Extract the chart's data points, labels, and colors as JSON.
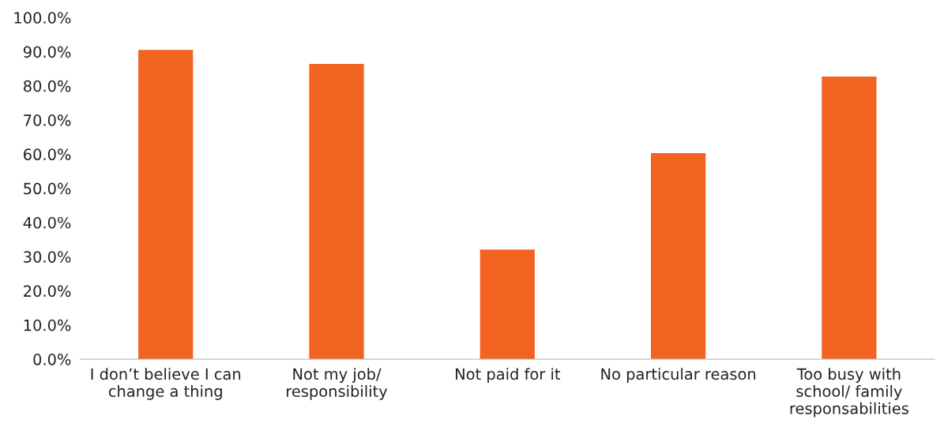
{
  "chart_data": {
    "type": "bar",
    "categories": [
      "I don’t believe I can\nchange a thing",
      "Not my job/\nresponsibility",
      "Not paid for it",
      "No particular reason",
      "Too busy with\nschool/ family\nresponsabilities"
    ],
    "values": [
      90.5,
      86.4,
      32.1,
      60.3,
      82.7
    ],
    "color": "#f26322",
    "ylim": [
      0,
      100
    ],
    "yticks": [
      {
        "value": 0,
        "label": "0.0%"
      },
      {
        "value": 10,
        "label": "10.0%"
      },
      {
        "value": 20,
        "label": "20.0%"
      },
      {
        "value": 30,
        "label": "30.0%"
      },
      {
        "value": 40,
        "label": "40.0%"
      },
      {
        "value": 50,
        "label": "50.0%"
      },
      {
        "value": 60,
        "label": "60.0%"
      },
      {
        "value": 70,
        "label": "70.0%"
      },
      {
        "value": 80,
        "label": "80.0%"
      },
      {
        "value": 90,
        "label": "90.0%"
      },
      {
        "value": 100,
        "label": "100.0%"
      }
    ],
    "grid": false
  }
}
